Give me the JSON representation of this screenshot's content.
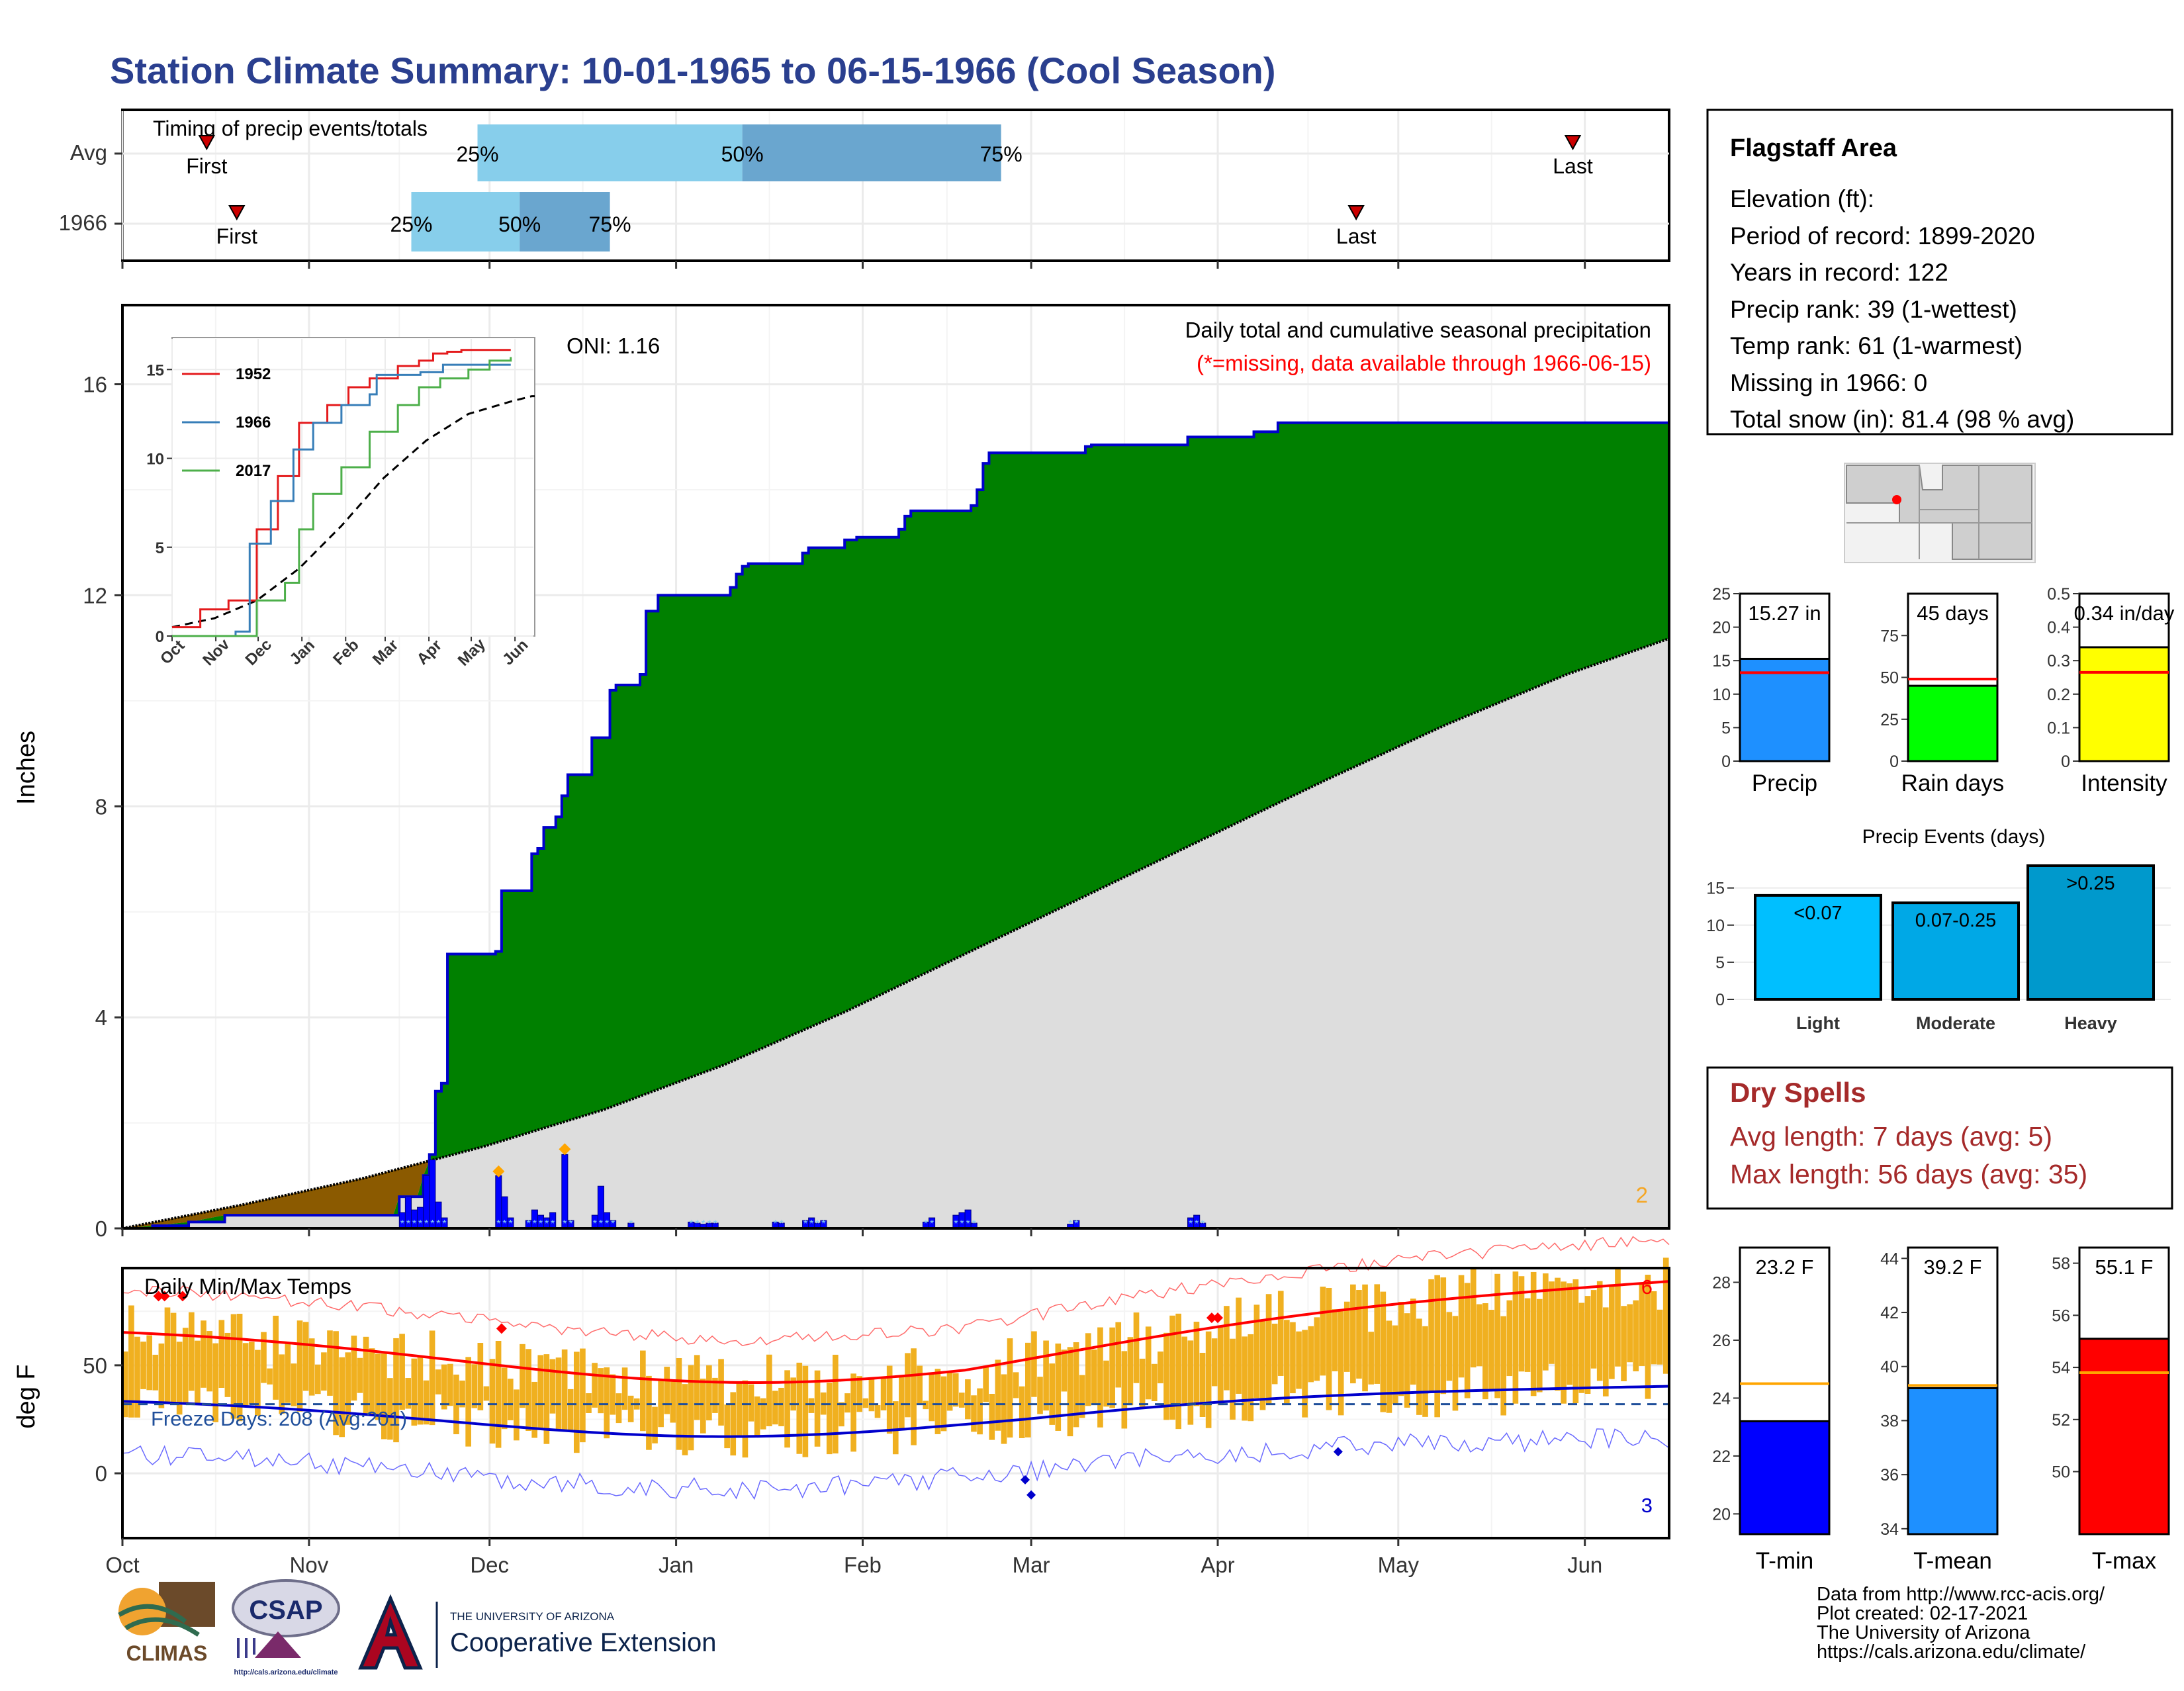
{
  "page_title": "Station Climate Summary: 10-01-1965 to 06-15-1966 (Cool Season)",
  "timing": {
    "title": "Timing of precip events/totals",
    "rows": [
      {
        "label": "Avg",
        "first_day": 14,
        "last_day": 241,
        "p25_day": 59,
        "p50_day": 103,
        "p75_day": 146
      },
      {
        "label": "1966",
        "first_day": 19,
        "last_day": 205,
        "p25_day": 48,
        "p50_day": 66,
        "p75_day": 81
      }
    ],
    "first_label": "First",
    "last_label": "Last",
    "pct_labels": [
      "25%",
      "50%",
      "75%"
    ]
  },
  "precip": {
    "ylabel": "Inches",
    "annotation_title": "Daily total and cumulative seasonal precipitation",
    "annotation_missing": "(*=missing, data available through 1966-06-15)",
    "oni": "ONI: 1.16",
    "corner_count": "2",
    "yticks": [
      0,
      4,
      8,
      12,
      16
    ],
    "ylim": [
      0,
      16
    ],
    "cum_1966": [
      [
        0,
        0
      ],
      [
        5,
        0.05
      ],
      [
        11,
        0.12
      ],
      [
        17,
        0.25
      ],
      [
        23,
        0.25
      ],
      [
        45,
        0.25
      ],
      [
        46,
        0.6
      ],
      [
        49,
        0.6
      ],
      [
        50,
        1.0
      ],
      [
        51,
        1.4
      ],
      [
        52,
        2.6
      ],
      [
        53,
        2.75
      ],
      [
        54,
        5.2
      ],
      [
        55,
        5.2
      ],
      [
        61,
        5.2
      ],
      [
        62,
        5.25
      ],
      [
        63,
        6.4
      ],
      [
        67,
        6.4
      ],
      [
        68,
        7.1
      ],
      [
        69,
        7.2
      ],
      [
        70,
        7.6
      ],
      [
        72,
        7.8
      ],
      [
        73,
        8.2
      ],
      [
        74,
        8.6
      ],
      [
        77,
        8.6
      ],
      [
        78,
        9.3
      ],
      [
        81,
        10.2
      ],
      [
        82,
        10.3
      ],
      [
        85,
        10.3
      ],
      [
        86,
        10.5
      ],
      [
        87,
        11.7
      ],
      [
        89,
        12.0
      ],
      [
        100,
        12.0
      ],
      [
        101,
        12.15
      ],
      [
        102,
        12.4
      ],
      [
        103,
        12.55
      ],
      [
        104,
        12.6
      ],
      [
        112,
        12.6
      ],
      [
        113,
        12.8
      ],
      [
        114,
        12.9
      ],
      [
        119,
        12.9
      ],
      [
        120,
        13.05
      ],
      [
        122,
        13.1
      ],
      [
        128,
        13.1
      ],
      [
        129,
        13.25
      ],
      [
        130,
        13.5
      ],
      [
        131,
        13.6
      ],
      [
        140,
        13.6
      ],
      [
        141,
        13.7
      ],
      [
        142,
        14.0
      ],
      [
        143,
        14.5
      ],
      [
        144,
        14.7
      ],
      [
        159,
        14.7
      ],
      [
        160,
        14.82
      ],
      [
        161,
        14.85
      ],
      [
        176,
        14.85
      ],
      [
        177,
        15.0
      ],
      [
        187,
        15.0
      ],
      [
        188,
        15.1
      ],
      [
        192,
        15.27
      ],
      [
        257,
        15.27
      ]
    ],
    "cum_avg": [
      [
        0,
        0
      ],
      [
        20,
        0.45
      ],
      [
        40,
        0.95
      ],
      [
        60,
        1.55
      ],
      [
        80,
        2.25
      ],
      [
        100,
        3.1
      ],
      [
        120,
        4.1
      ],
      [
        140,
        5.2
      ],
      [
        160,
        6.3
      ],
      [
        180,
        7.4
      ],
      [
        200,
        8.5
      ],
      [
        220,
        9.55
      ],
      [
        240,
        10.5
      ],
      [
        260,
        11.3
      ],
      [
        280,
        11.9
      ],
      [
        300,
        12.35
      ],
      [
        320,
        12.75
      ],
      [
        340,
        12.95
      ],
      [
        350,
        13.1
      ]
    ],
    "daily_bars": [
      [
        46,
        0.3
      ],
      [
        47,
        0.6
      ],
      [
        48,
        0.35
      ],
      [
        49,
        0.4
      ],
      [
        50,
        1.0
      ],
      [
        51,
        1.3
      ],
      [
        52,
        0.5
      ],
      [
        53,
        0.2
      ],
      [
        62,
        1.0
      ],
      [
        63,
        0.6
      ],
      [
        64,
        0.2
      ],
      [
        67,
        0.15
      ],
      [
        68,
        0.35
      ],
      [
        69,
        0.25
      ],
      [
        70,
        0.2
      ],
      [
        71,
        0.3
      ],
      [
        73,
        1.4
      ],
      [
        74,
        0.15
      ],
      [
        78,
        0.25
      ],
      [
        79,
        0.8
      ],
      [
        80,
        0.3
      ],
      [
        81,
        0.15
      ],
      [
        84,
        0.1
      ],
      [
        94,
        0.12
      ],
      [
        95,
        0.1
      ],
      [
        96,
        0.08
      ],
      [
        97,
        0.1
      ],
      [
        98,
        0.1
      ],
      [
        108,
        0.12
      ],
      [
        109,
        0.1
      ],
      [
        113,
        0.15
      ],
      [
        114,
        0.2
      ],
      [
        115,
        0.1
      ],
      [
        116,
        0.15
      ],
      [
        133,
        0.12
      ],
      [
        134,
        0.2
      ],
      [
        138,
        0.25
      ],
      [
        139,
        0.3
      ],
      [
        140,
        0.35
      ],
      [
        141,
        0.1
      ],
      [
        157,
        0.08
      ],
      [
        158,
        0.15
      ],
      [
        177,
        0.2
      ],
      [
        178,
        0.25
      ],
      [
        179,
        0.1
      ]
    ],
    "record_markers": [
      [
        62,
        1.08
      ],
      [
        73,
        1.5
      ]
    ],
    "inset": {
      "series": [
        {
          "name": "1952",
          "color": "#e41a1c",
          "values": [
            [
              0,
              0.5
            ],
            [
              20,
              1.5
            ],
            [
              40,
              2.0
            ],
            [
              60,
              6.0
            ],
            [
              75,
              9.0
            ],
            [
              90,
              12.0
            ],
            [
              110,
              13.0
            ],
            [
              125,
              14.0
            ],
            [
              140,
              14.5
            ],
            [
              160,
              15.2
            ],
            [
              175,
              15.5
            ],
            [
              185,
              15.9
            ],
            [
              195,
              16.0
            ],
            [
              205,
              16.1
            ],
            [
              240,
              16.1
            ]
          ]
        },
        {
          "name": "1966",
          "color": "#377eb8",
          "values": [
            [
              0,
              0
            ],
            [
              45,
              0.25
            ],
            [
              55,
              5.2
            ],
            [
              70,
              7.6
            ],
            [
              86,
              10.5
            ],
            [
              100,
              12.0
            ],
            [
              120,
              13.0
            ],
            [
              140,
              13.6
            ],
            [
              145,
              14.7
            ],
            [
              176,
              14.85
            ],
            [
              192,
              15.27
            ],
            [
              240,
              15.27
            ]
          ]
        },
        {
          "name": "2017",
          "color": "#4daf4a",
          "values": [
            [
              0,
              0
            ],
            [
              60,
              2.0
            ],
            [
              80,
              3.0
            ],
            [
              90,
              6.0
            ],
            [
              100,
              8.0
            ],
            [
              120,
              9.5
            ],
            [
              140,
              11.5
            ],
            [
              160,
              13.0
            ],
            [
              175,
              14.0
            ],
            [
              190,
              14.5
            ],
            [
              210,
              15.0
            ],
            [
              225,
              15.5
            ],
            [
              240,
              15.7
            ]
          ]
        }
      ],
      "avg_values": [
        [
          0,
          0.5
        ],
        [
          30,
          1.0
        ],
        [
          60,
          2.0
        ],
        [
          90,
          3.8
        ],
        [
          120,
          6.2
        ],
        [
          150,
          8.9
        ],
        [
          180,
          11.0
        ],
        [
          210,
          12.5
        ],
        [
          240,
          13.2
        ],
        [
          255,
          13.5
        ]
      ],
      "yticks": [
        0,
        5,
        10,
        15
      ],
      "month_labels": [
        "Oct",
        "Nov",
        "Dec",
        "Jan",
        "Feb",
        "Mar",
        "Apr",
        "May",
        "Jun"
      ]
    }
  },
  "temps": {
    "title": "Daily Min/Max Temps",
    "ylabel": "deg F",
    "yticks": [
      0,
      50
    ],
    "ylim": [
      -30,
      95
    ],
    "freeze_line": 32,
    "freeze_label": "Freeze Days: 208 (Avg:201)",
    "count_top": "6",
    "count_bottom": "3",
    "month_labels": [
      "Oct",
      "Nov",
      "Dec",
      "Jan",
      "Feb",
      "Mar",
      "Apr",
      "May",
      "Jun"
    ],
    "month_start_days": [
      0,
      31,
      61,
      92,
      123,
      151,
      182,
      212,
      243
    ],
    "record_high_days": [
      [
        6,
        82
      ],
      [
        7,
        82
      ],
      [
        10,
        82
      ],
      [
        63,
        67
      ],
      [
        181,
        72
      ],
      [
        182,
        72
      ]
    ],
    "record_low_days": [
      [
        150,
        -3
      ],
      [
        151,
        -10
      ],
      [
        202,
        10
      ]
    ]
  },
  "info": {
    "station": "Flagstaff Area",
    "lines": [
      "Elevation (ft):",
      "Period of record: 1899-2020",
      "Years in record: 122",
      "Precip rank: 39 (1-wettest)",
      "Temp rank: 61 (1-warmest)",
      "Missing in 1966: 0",
      "Total snow (in): 81.4 (98 % avg)"
    ]
  },
  "mini_bars": [
    {
      "label": "Precip",
      "value": 15.27,
      "value_label": "15.27 in",
      "avg": 13.2,
      "ymax": 25,
      "yticks": [
        0,
        5,
        10,
        15,
        20,
        25
      ],
      "color": "#1e90ff"
    },
    {
      "label": "Rain days",
      "value": 45,
      "value_label": "45 days",
      "avg": 49,
      "ymax": 100,
      "yticks": [
        0,
        25,
        50,
        75
      ],
      "color": "#00ff00"
    },
    {
      "label": "Intensity",
      "value": 0.34,
      "value_label": "0.34 in/day",
      "avg": 0.265,
      "ymax": 0.5,
      "yticks": [
        0.0,
        0.1,
        0.2,
        0.3,
        0.4,
        0.5
      ],
      "color": "#ffff00"
    }
  ],
  "events": {
    "title": "Precip Events (days)",
    "yticks": [
      0,
      5,
      10,
      15
    ],
    "ymax": 18,
    "categories": [
      "Light",
      "Moderate",
      "Heavy"
    ],
    "range_labels": [
      "<0.07",
      "0.07-0.25",
      ">0.25"
    ],
    "values": [
      14,
      13,
      18
    ],
    "colors": [
      "#00bfff",
      "#00a8e6",
      "#0099cc"
    ]
  },
  "dry_spells": {
    "title": "Dry Spells",
    "avg_line": "Avg length: 7 days (avg: 5)",
    "max_line": "Max length: 56 days (avg: 35)"
  },
  "temp_bars": [
    {
      "label": "T-min",
      "value": 23.2,
      "value_label": "23.2 F",
      "avg": 24.5,
      "ymin": 19.3,
      "ymax": 29.2,
      "yticks": [
        20,
        22,
        24,
        26,
        28
      ],
      "color": "#0000ff"
    },
    {
      "label": "T-mean",
      "value": 39.2,
      "value_label": "39.2 F",
      "avg": 39.3,
      "ymin": 33.8,
      "ymax": 44.4,
      "yticks": [
        34,
        36,
        38,
        40,
        42,
        44
      ],
      "color": "#1e90ff"
    },
    {
      "label": "T-max",
      "value": 55.1,
      "value_label": "55.1 F",
      "avg": 53.8,
      "ymin": 47.6,
      "ymax": 58.6,
      "yticks": [
        50,
        52,
        54,
        56,
        58
      ],
      "color": "#ff0000"
    }
  ],
  "footer": {
    "lines": [
      "Data from http://www.rcc-acis.org/",
      "Plot created: 02-17-2021",
      "The University of Arizona",
      "https://cals.arizona.edu/climate/"
    ],
    "climas_label": "CLIMAS",
    "csap_label": "CSAP",
    "csap_url": "http://cals.arizona.edu/climate",
    "ua_small": "THE UNIVERSITY OF ARIZONA",
    "ua_big": "Cooperative Extension"
  }
}
